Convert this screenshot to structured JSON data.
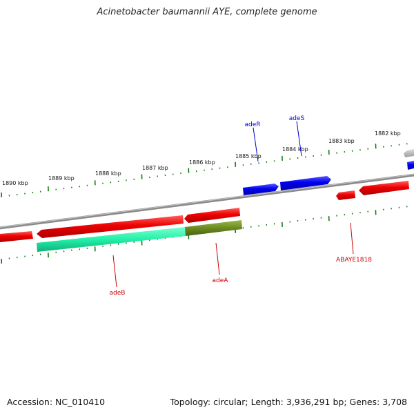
{
  "title": "Acinetobacter baumannii AYE, complete genome",
  "footer": {
    "accession": "Accession: NC_010410",
    "topology": "Topology: circular; Length: 3,936,291 bp; Genes: 3,708"
  },
  "ticks": [
    "1890 kbp",
    "1889 kbp",
    "1888 kbp",
    "1887 kbp",
    "1886 kbp",
    "1885 kbp",
    "1884 kbp",
    "1883 kbp",
    "1882 kbp"
  ],
  "genes": {
    "adeR": "adeR",
    "adeS": "adeS",
    "adeB": "adeB",
    "adeA": "adeA",
    "ABAYE1818": "ABAYE1818"
  },
  "colors": {
    "forward_gene": "#0000ee",
    "reverse_gene": "#ee0000",
    "adeB_highlight": "#22f0a8",
    "adeA_highlight": "#6b8a20",
    "backbone": "#888888",
    "tick": "#117711",
    "gray_gene": "#bbbbbb"
  }
}
